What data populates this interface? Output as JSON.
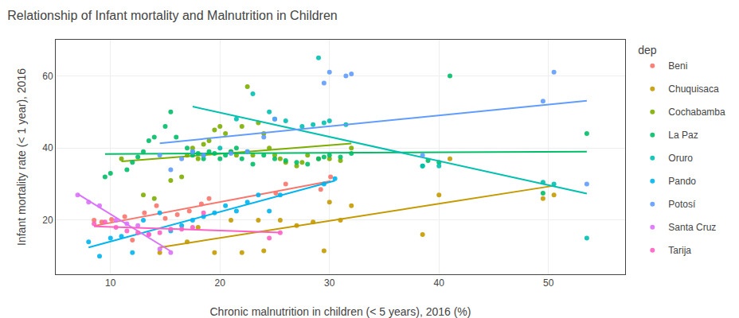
{
  "chart_data": {
    "type": "scatter",
    "title": "Relationship of Infant mortality and Malnutrition in Children",
    "x_label": "Chronic malnutrition in children (< 5 years), 2016 (%)",
    "y_label": "Infant mortality rate (< 1 year), 2016",
    "legend_title": "dep",
    "legend": "right",
    "grid": true,
    "xlim": [
      5,
      57
    ],
    "ylim": [
      5,
      70
    ],
    "xticks": [
      10,
      20,
      30,
      40,
      50
    ],
    "yticks": [
      20,
      40,
      60
    ],
    "series": [
      {
        "name": "Beni",
        "color": "#F8766D",
        "x": [
          8.5,
          9.2,
          10.1,
          11.3,
          12.0,
          13.1,
          14.2,
          15.0,
          16.1,
          17.2,
          18.3,
          19.0,
          25.1,
          26.0,
          29.2,
          30.1
        ],
        "values": [
          20.0,
          19.5,
          20.2,
          21.0,
          14.5,
          22.0,
          24.0,
          20.5,
          21.5,
          22.5,
          24.5,
          26.0,
          27.5,
          30.0,
          28.5,
          32.0
        ],
        "trend_x": [
          8.5,
          30.1
        ],
        "trend_values": [
          18.41,
          30.84
        ]
      },
      {
        "name": "Chuquisaca",
        "color": "#C49A00",
        "x": [
          14.5,
          17.0,
          18.0,
          19.5,
          21.0,
          22.0,
          23.5,
          24.0,
          25.5,
          27.0,
          28.5,
          29.5,
          30.0,
          31.0,
          32.0,
          38.5,
          40.0,
          41.0,
          49.5,
          50.5
        ],
        "values": [
          11.0,
          14.0,
          18.0,
          11.0,
          20.0,
          11.0,
          20.0,
          11.5,
          20.0,
          18.5,
          19.5,
          11.5,
          25.0,
          20.0,
          24.0,
          16.0,
          27.0,
          37.0,
          26.0,
          27.0
        ],
        "trend_x": [
          14.5,
          50.5
        ],
        "trend_values": [
          12.46,
          29.54
        ]
      },
      {
        "name": "Cochabamba",
        "color": "#7CAE00",
        "x": [
          11.0,
          13.0,
          14.0,
          15.5,
          16.5,
          17.0,
          17.5,
          18.0,
          18.5,
          19.0,
          19.5,
          20.0,
          20.5,
          21.0,
          21.5,
          22.0,
          22.5,
          23.0,
          23.5,
          24.0,
          24.5,
          25.0,
          25.5,
          26.0,
          27.0,
          27.5,
          28.0,
          29.0,
          30.0,
          31.0,
          32.0
        ],
        "values": [
          37.0,
          27.0,
          26.0,
          31.0,
          32.0,
          38.0,
          40.0,
          37.0,
          41.0,
          42.0,
          45.0,
          46.0,
          44.0,
          39.0,
          38.0,
          46.0,
          57.0,
          38.0,
          47.0,
          44.0,
          40.0,
          38.0,
          37.0,
          36.0,
          35.0,
          36.0,
          38.0,
          37.0,
          37.0,
          36.5,
          40.0
        ],
        "trend_x": [
          11.0,
          32.0
        ],
        "trend_values": [
          36.27,
          41.25
        ]
      },
      {
        "name": "La Paz",
        "color": "#00BE67",
        "x": [
          9.5,
          10.0,
          11.5,
          12.0,
          12.5,
          13.0,
          13.5,
          14.0,
          15.0,
          15.5,
          16.0,
          17.0,
          17.5,
          18.0,
          18.5,
          19.0,
          19.5,
          20.0,
          20.5,
          21.0,
          21.5,
          22.0,
          22.5,
          23.0,
          24.0,
          25.0,
          26.0,
          27.0,
          28.0,
          29.0,
          29.5,
          30.0,
          31.0,
          32.0,
          38.5,
          39.0,
          40.0,
          41.0,
          49.5,
          53.5
        ],
        "values": [
          32.0,
          33.0,
          34.0,
          36.0,
          37.5,
          39.0,
          42.0,
          43.0,
          46.0,
          50.0,
          43.0,
          40.0,
          38.0,
          38.5,
          37.0,
          39.0,
          38.5,
          37.0,
          38.0,
          39.0,
          40.0,
          37.0,
          39.0,
          35.5,
          38.0,
          37.0,
          36.5,
          36.0,
          35.5,
          37.0,
          37.5,
          38.0,
          37.5,
          38.5,
          35.0,
          36.5,
          36.0,
          60.0,
          27.5,
          44.0
        ],
        "trend_x": [
          9.5,
          53.5
        ],
        "trend_values": [
          38.35,
          39.01
        ]
      },
      {
        "name": "Oruro",
        "color": "#00C0AF",
        "x": [
          17.5,
          18.5,
          20.0,
          21.5,
          23.0,
          24.5,
          25.0,
          26.0,
          27.5,
          28.5,
          29.0,
          29.5,
          30.0,
          31.5,
          38.5,
          40.0,
          49.5,
          50.5,
          53.5
        ],
        "values": [
          39.0,
          38.0,
          40.0,
          48.0,
          55.0,
          50.0,
          48.0,
          47.5,
          46.0,
          46.5,
          65.0,
          47.0,
          47.5,
          46.5,
          35.0,
          35.0,
          30.5,
          30.0,
          15.0
        ],
        "trend_x": [
          17.5,
          53.5
        ],
        "trend_values": [
          51.48,
          27.35
        ]
      },
      {
        "name": "Pando",
        "color": "#00B4F0",
        "x": [
          8.0,
          9.0,
          10.0,
          11.0,
          12.0,
          13.0,
          14.5,
          15.5,
          16.5,
          17.5,
          18.5,
          19.5,
          20.5,
          21.5,
          22.5,
          23.5,
          24.5,
          25.5,
          29.5,
          30.5
        ],
        "values": [
          14.0,
          10.0,
          15.0,
          15.5,
          11.0,
          20.0,
          22.0,
          17.0,
          18.5,
          20.0,
          21.0,
          22.0,
          24.0,
          22.5,
          25.0,
          27.0,
          22.5,
          27.0,
          30.0,
          31.5
        ],
        "trend_x": [
          8.0,
          30.5
        ],
        "trend_values": [
          12.42,
          30.94
        ]
      },
      {
        "name": "Potosí",
        "color": "#619CFF",
        "x": [
          14.5,
          15.5,
          16.5,
          17.5,
          18.5,
          21.0,
          22.5,
          24.0,
          25.0,
          29.5,
          30.0,
          31.5,
          32.0,
          38.5,
          49.5,
          50.5,
          53.5
        ],
        "values": [
          38.0,
          34.0,
          37.0,
          39.0,
          38.0,
          38.5,
          39.0,
          43.0,
          48.0,
          58.0,
          61.0,
          60.0,
          60.5,
          38.0,
          53.0,
          61.0,
          30.0
        ],
        "trend_x": [
          14.5,
          53.5
        ],
        "trend_values": [
          41.32,
          53.11
        ]
      },
      {
        "name": "Santa Cruz",
        "color": "#DB72FB",
        "x": [
          7.0,
          8.0,
          9.0,
          10.5,
          11.5,
          12.5,
          13.5,
          14.5,
          15.5
        ],
        "values": [
          27.0,
          25.0,
          24.0,
          20.0,
          19.0,
          18.5,
          16.0,
          12.0,
          11.0
        ],
        "trend_x": [
          7.0,
          15.5
        ],
        "trend_values": [
          27.26,
          11.39
        ]
      },
      {
        "name": "Tarija",
        "color": "#FF61C3",
        "x": [
          8.5,
          9.5,
          10.5,
          11.5,
          12.5,
          13.5,
          14.5,
          15.5,
          16.5,
          17.5,
          18.5,
          24.5,
          25.5
        ],
        "values": [
          19.0,
          19.5,
          18.0,
          17.0,
          16.5,
          16.0,
          16.5,
          17.5,
          17.5,
          18.0,
          22.0,
          15.0,
          16.5
        ],
        "trend_x": [
          8.5,
          25.5
        ],
        "trend_values": [
          18.3,
          16.59
        ]
      }
    ]
  }
}
